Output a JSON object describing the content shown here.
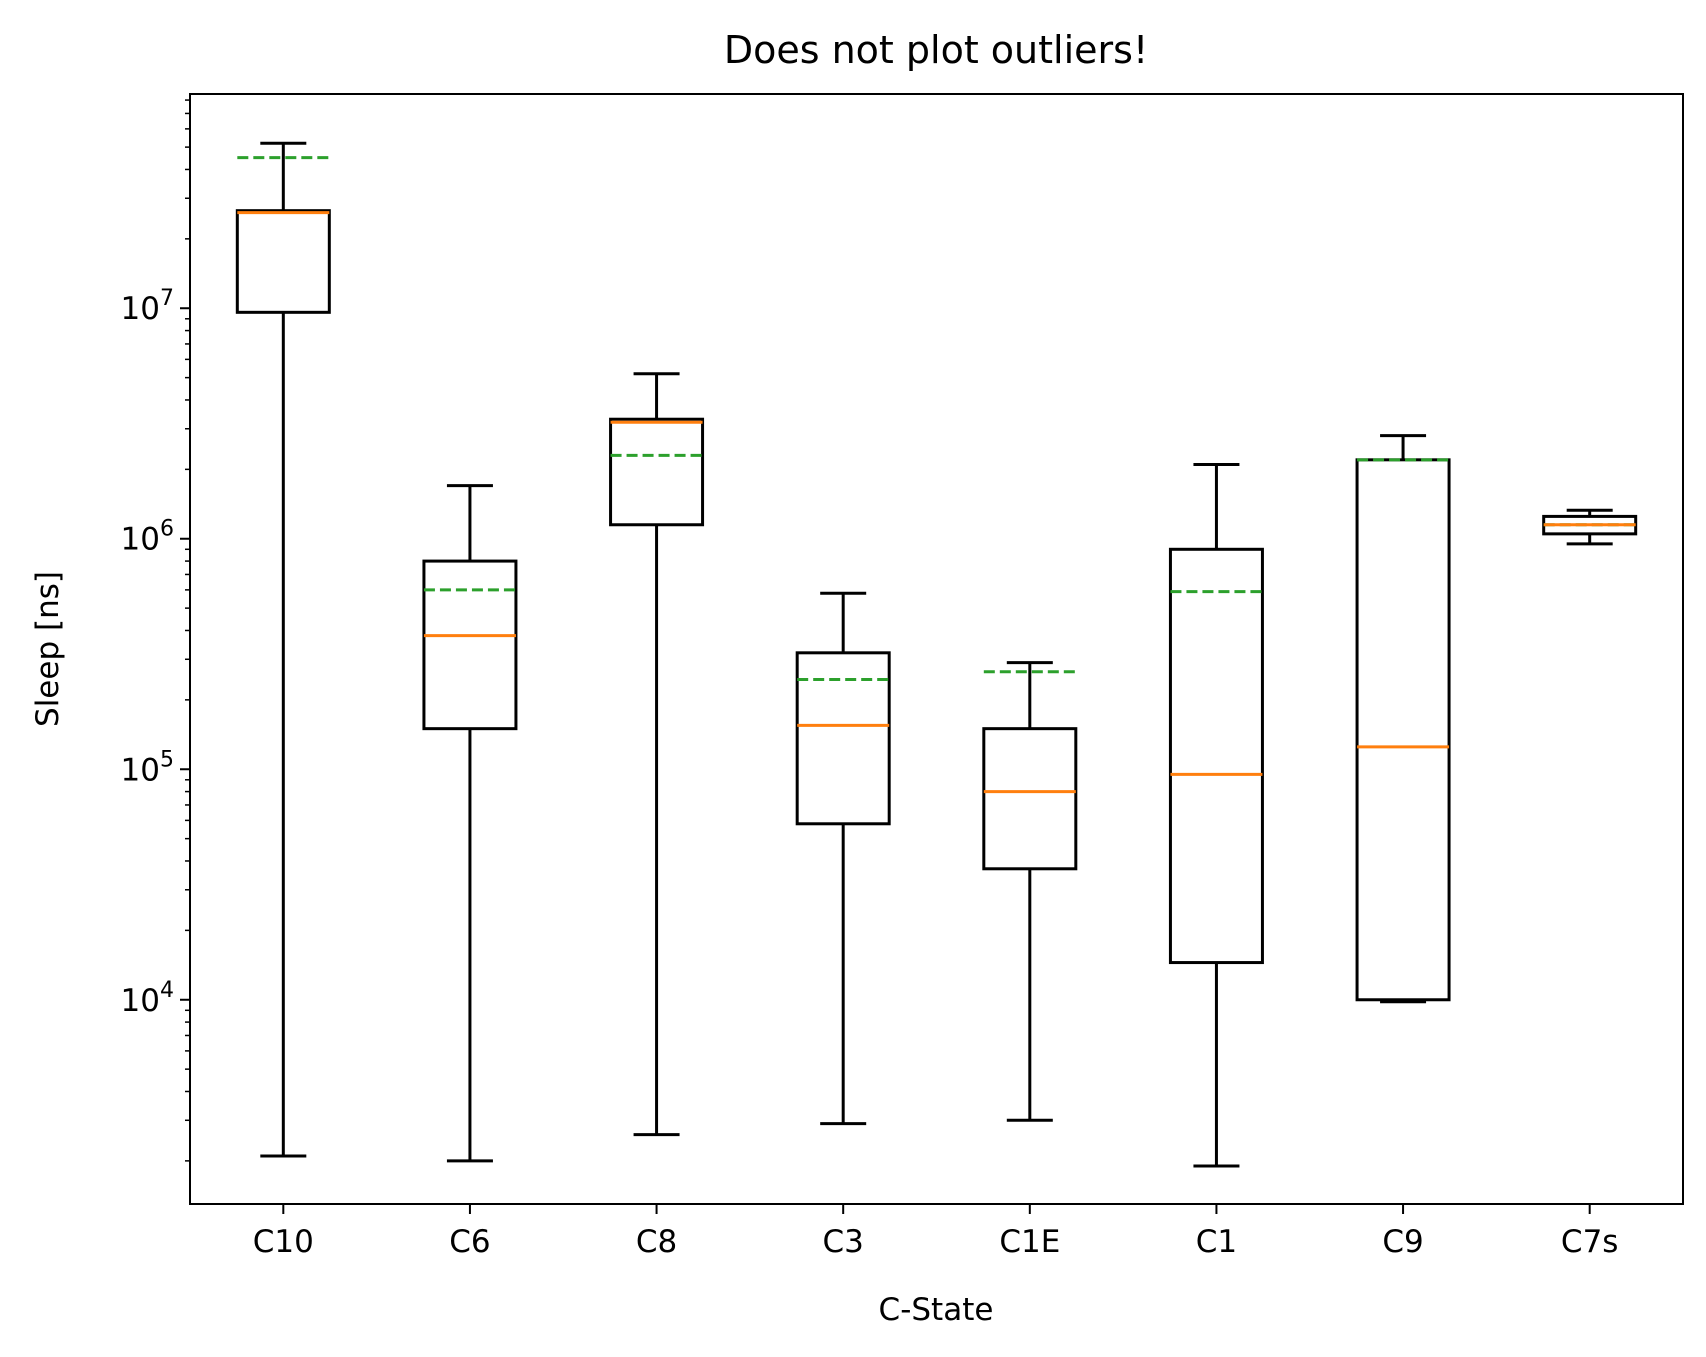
{
  "chart_data": {
    "type": "box",
    "title": "Does not plot outliers!",
    "xlabel": "C-State",
    "ylabel": "Sleep [ns]",
    "yscale": "log",
    "ylim": [
      1300,
      85000000
    ],
    "y_ticks": [
      {
        "base": "10",
        "exp": "4",
        "value": 10000
      },
      {
        "base": "10",
        "exp": "5",
        "value": 100000
      },
      {
        "base": "10",
        "exp": "6",
        "value": 1000000
      },
      {
        "base": "10",
        "exp": "7",
        "value": 10000000
      }
    ],
    "grid": false,
    "show_outliers": false,
    "colors": {
      "box": "#000000",
      "median": "#ff7f0e",
      "mean": "#2ca02c"
    },
    "categories": [
      "C10",
      "C6",
      "C8",
      "C3",
      "C1E",
      "C1",
      "C9",
      "C7s"
    ],
    "boxes": [
      {
        "label": "C10",
        "whislo": 2100,
        "q1": 9600000,
        "med": 26000000,
        "q3": 26500000,
        "whishi": 52000000,
        "mean": 45000000
      },
      {
        "label": "C6",
        "whislo": 2000,
        "q1": 150000,
        "med": 380000,
        "q3": 800000,
        "whishi": 1700000,
        "mean": 600000
      },
      {
        "label": "C8",
        "whislo": 2600,
        "q1": 1150000,
        "med": 3200000,
        "q3": 3300000,
        "whishi": 5200000,
        "mean": 2300000
      },
      {
        "label": "C3",
        "whislo": 2900,
        "q1": 58000,
        "med": 155000,
        "q3": 320000,
        "whishi": 580000,
        "mean": 245000
      },
      {
        "label": "C1E",
        "whislo": 3000,
        "q1": 37000,
        "med": 80000,
        "q3": 150000,
        "whishi": 290000,
        "mean": 265000
      },
      {
        "label": "C1",
        "whislo": 1900,
        "q1": 14500,
        "med": 95000,
        "q3": 900000,
        "whishi": 2100000,
        "mean": 590000
      },
      {
        "label": "C9",
        "whislo": 9800,
        "q1": 10000,
        "med": 125000,
        "q3": 2200000,
        "whishi": 2800000,
        "mean": 2200000
      },
      {
        "label": "C7s",
        "whislo": 950000,
        "q1": 1050000,
        "med": 1150000,
        "q3": 1250000,
        "whishi": 1330000,
        "mean": 1150000
      }
    ]
  }
}
